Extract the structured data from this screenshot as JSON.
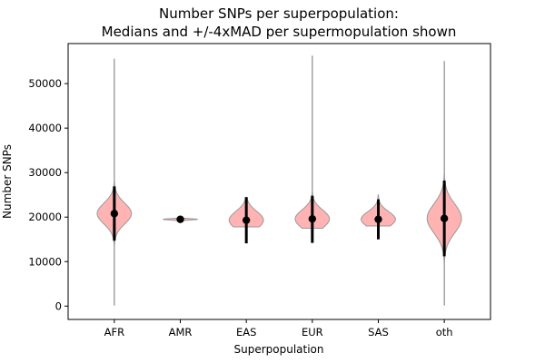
{
  "chart_data": {
    "type": "violin",
    "title": [
      "Number SNPs per superpopulation:",
      "Medians and +/-4xMAD per supermopulation shown"
    ],
    "xlabel": "Superpopulation",
    "ylabel": "Number SNPs",
    "ylim": [
      -3000,
      59000
    ],
    "yticks": [
      0,
      10000,
      20000,
      30000,
      40000,
      50000
    ],
    "categories": [
      "AFR",
      "AMR",
      "EAS",
      "EUR",
      "SAS",
      "oth"
    ],
    "medians": [
      20800,
      19500,
      19300,
      19600,
      19500,
      19700
    ],
    "mad_lower": [
      14700,
      19100,
      14100,
      14200,
      15000,
      11200
    ],
    "mad_upper": [
      26900,
      19900,
      24500,
      24800,
      24000,
      28200
    ],
    "data_min": [
      200,
      18800,
      17800,
      17500,
      18000,
      200
    ],
    "data_max": [
      55500,
      19900,
      24300,
      56200,
      25000,
      55000
    ],
    "violin_color": "#ff9999",
    "violin_edge": "#999999",
    "marker_color": "#000000"
  }
}
